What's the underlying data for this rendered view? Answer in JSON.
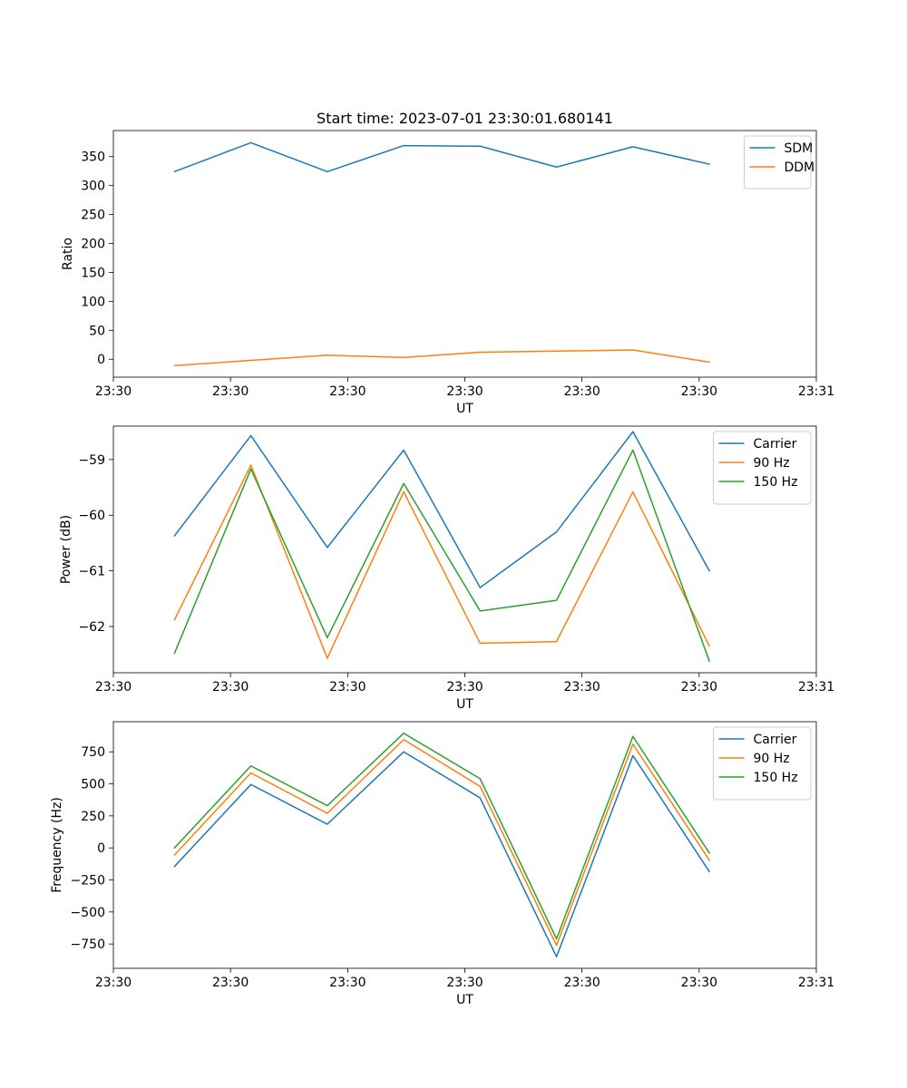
{
  "chart_data": [
    {
      "type": "line",
      "title": "Start time: 2023-07-01 23:30:01.680141",
      "xlabel": "UT",
      "ylabel": "Ratio",
      "x": [
        1,
        2,
        3,
        4,
        5,
        6,
        7,
        8
      ],
      "xlim": [
        0.2,
        9.4
      ],
      "x_ticks": [
        {
          "x": 0.2,
          "label": "23:30"
        },
        {
          "x": 1.733,
          "label": "23:30"
        },
        {
          "x": 3.267,
          "label": "23:30"
        },
        {
          "x": 4.8,
          "label": "23:30"
        },
        {
          "x": 6.333,
          "label": "23:30"
        },
        {
          "x": 7.867,
          "label": "23:30"
        },
        {
          "x": 9.4,
          "label": "23:31"
        }
      ],
      "ylim": [
        -31,
        395
      ],
      "y_ticks": [
        0,
        50,
        100,
        150,
        200,
        250,
        300,
        350
      ],
      "y_tick_labels": [
        "0",
        "50",
        "100",
        "150",
        "200",
        "250",
        "300",
        "350"
      ],
      "legend_position": "top-right",
      "series": [
        {
          "name": "SDM",
          "color": "#1f77b4",
          "values": [
            324,
            374,
            324,
            369,
            368,
            332,
            367,
            337
          ]
        },
        {
          "name": "DDM",
          "color": "#ff7f0e",
          "values": [
            -11,
            -2,
            7,
            3,
            12,
            14,
            16,
            -5
          ]
        }
      ]
    },
    {
      "type": "line",
      "title": "",
      "xlabel": "UT",
      "ylabel": "Power (dB)",
      "x": [
        1,
        2,
        3,
        4,
        5,
        6,
        7,
        8
      ],
      "xlim": [
        0.2,
        9.4
      ],
      "x_ticks": [
        {
          "x": 0.2,
          "label": "23:30"
        },
        {
          "x": 1.733,
          "label": "23:30"
        },
        {
          "x": 3.267,
          "label": "23:30"
        },
        {
          "x": 4.8,
          "label": "23:30"
        },
        {
          "x": 6.333,
          "label": "23:30"
        },
        {
          "x": 7.867,
          "label": "23:30"
        },
        {
          "x": 9.4,
          "label": "23:31"
        }
      ],
      "ylim": [
        -62.83,
        -58.4
      ],
      "y_ticks": [
        -62,
        -61,
        -60,
        -59
      ],
      "y_tick_labels": [
        "−62",
        "−61",
        "−60",
        "−59"
      ],
      "legend_position": "top-right",
      "series": [
        {
          "name": "Carrier",
          "color": "#1f77b4",
          "values": [
            -60.37,
            -58.57,
            -60.58,
            -58.83,
            -61.3,
            -60.3,
            -58.5,
            -61.0
          ]
        },
        {
          "name": "90 Hz",
          "color": "#ff7f0e",
          "values": [
            -61.88,
            -59.1,
            -62.57,
            -59.58,
            -62.3,
            -62.27,
            -59.58,
            -62.35
          ]
        },
        {
          "name": "150 Hz",
          "color": "#2ca02c",
          "values": [
            -62.48,
            -59.17,
            -62.2,
            -59.43,
            -61.72,
            -61.53,
            -58.83,
            -62.62
          ]
        }
      ]
    },
    {
      "type": "line",
      "title": "",
      "xlabel": "UT",
      "ylabel": "Frequency (Hz)",
      "x": [
        1,
        2,
        3,
        4,
        5,
        6,
        7,
        8
      ],
      "xlim": [
        0.2,
        9.4
      ],
      "x_ticks": [
        {
          "x": 0.2,
          "label": "23:30"
        },
        {
          "x": 1.733,
          "label": "23:30"
        },
        {
          "x": 3.267,
          "label": "23:30"
        },
        {
          "x": 4.8,
          "label": "23:30"
        },
        {
          "x": 6.333,
          "label": "23:30"
        },
        {
          "x": 7.867,
          "label": "23:30"
        },
        {
          "x": 9.4,
          "label": "23:31"
        }
      ],
      "ylim": [
        -940,
        985
      ],
      "y_ticks": [
        -750,
        -500,
        -250,
        0,
        250,
        500,
        750
      ],
      "y_tick_labels": [
        "−750",
        "−500",
        "−250",
        "0",
        "250",
        "500",
        "750"
      ],
      "legend_position": "top-right",
      "series": [
        {
          "name": "Carrier",
          "color": "#1f77b4",
          "values": [
            -145,
            495,
            185,
            750,
            390,
            -850,
            720,
            -185
          ]
        },
        {
          "name": "90 Hz",
          "color": "#ff7f0e",
          "values": [
            -55,
            585,
            270,
            845,
            480,
            -760,
            810,
            -95
          ]
        },
        {
          "name": "150 Hz",
          "color": "#2ca02c",
          "values": [
            0,
            640,
            330,
            895,
            540,
            -710,
            870,
            -40
          ]
        }
      ]
    }
  ]
}
